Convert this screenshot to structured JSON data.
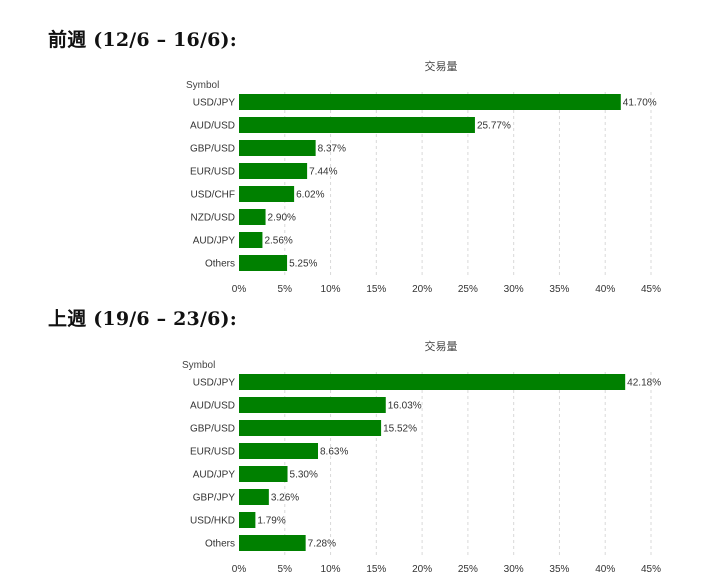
{
  "headings": [
    "前週 (12/6 – 16/6):",
    "上週 (19/6 – 23/6):"
  ],
  "colors": {
    "bar": "#008000",
    "text": "#333333"
  },
  "chart_data": [
    {
      "type": "bar",
      "orientation": "horizontal",
      "title": "交易量",
      "ylabel": "Symbol",
      "categories": [
        "USD/JPY",
        "AUD/USD",
        "GBP/USD",
        "EUR/USD",
        "USD/CHF",
        "NZD/USD",
        "AUD/JPY",
        "Others"
      ],
      "values": [
        41.7,
        25.77,
        8.37,
        7.44,
        6.02,
        2.9,
        2.56,
        5.25
      ],
      "data_labels": [
        "41.70%",
        "25.77%",
        "8.37%",
        "7.44%",
        "6.02%",
        "2.90%",
        "2.56%",
        "5.25%"
      ],
      "xlim": [
        0,
        45
      ],
      "xticks": [
        0,
        5,
        10,
        15,
        20,
        25,
        30,
        35,
        40,
        45
      ],
      "xtick_labels": [
        "0%",
        "5%",
        "10%",
        "15%",
        "20%",
        "25%",
        "30%",
        "35%",
        "40%",
        "45%"
      ],
      "grid": "vertical-dashed"
    },
    {
      "type": "bar",
      "orientation": "horizontal",
      "title": "交易量",
      "ylabel": "Symbol",
      "categories": [
        "USD/JPY",
        "AUD/USD",
        "GBP/USD",
        "EUR/USD",
        "AUD/JPY",
        "GBP/JPY",
        "USD/HKD",
        "Others"
      ],
      "values": [
        42.18,
        16.03,
        15.52,
        8.63,
        5.3,
        3.26,
        1.79,
        7.28
      ],
      "data_labels": [
        "42.18%",
        "16.03%",
        "15.52%",
        "8.63%",
        "5.30%",
        "3.26%",
        "1.79%",
        "7.28%"
      ],
      "xlim": [
        0,
        45
      ],
      "xticks": [
        0,
        5,
        10,
        15,
        20,
        25,
        30,
        35,
        40,
        45
      ],
      "xtick_labels": [
        "0%",
        "5%",
        "10%",
        "15%",
        "20%",
        "25%",
        "30%",
        "35%",
        "40%",
        "45%"
      ],
      "grid": "vertical-dashed"
    }
  ]
}
